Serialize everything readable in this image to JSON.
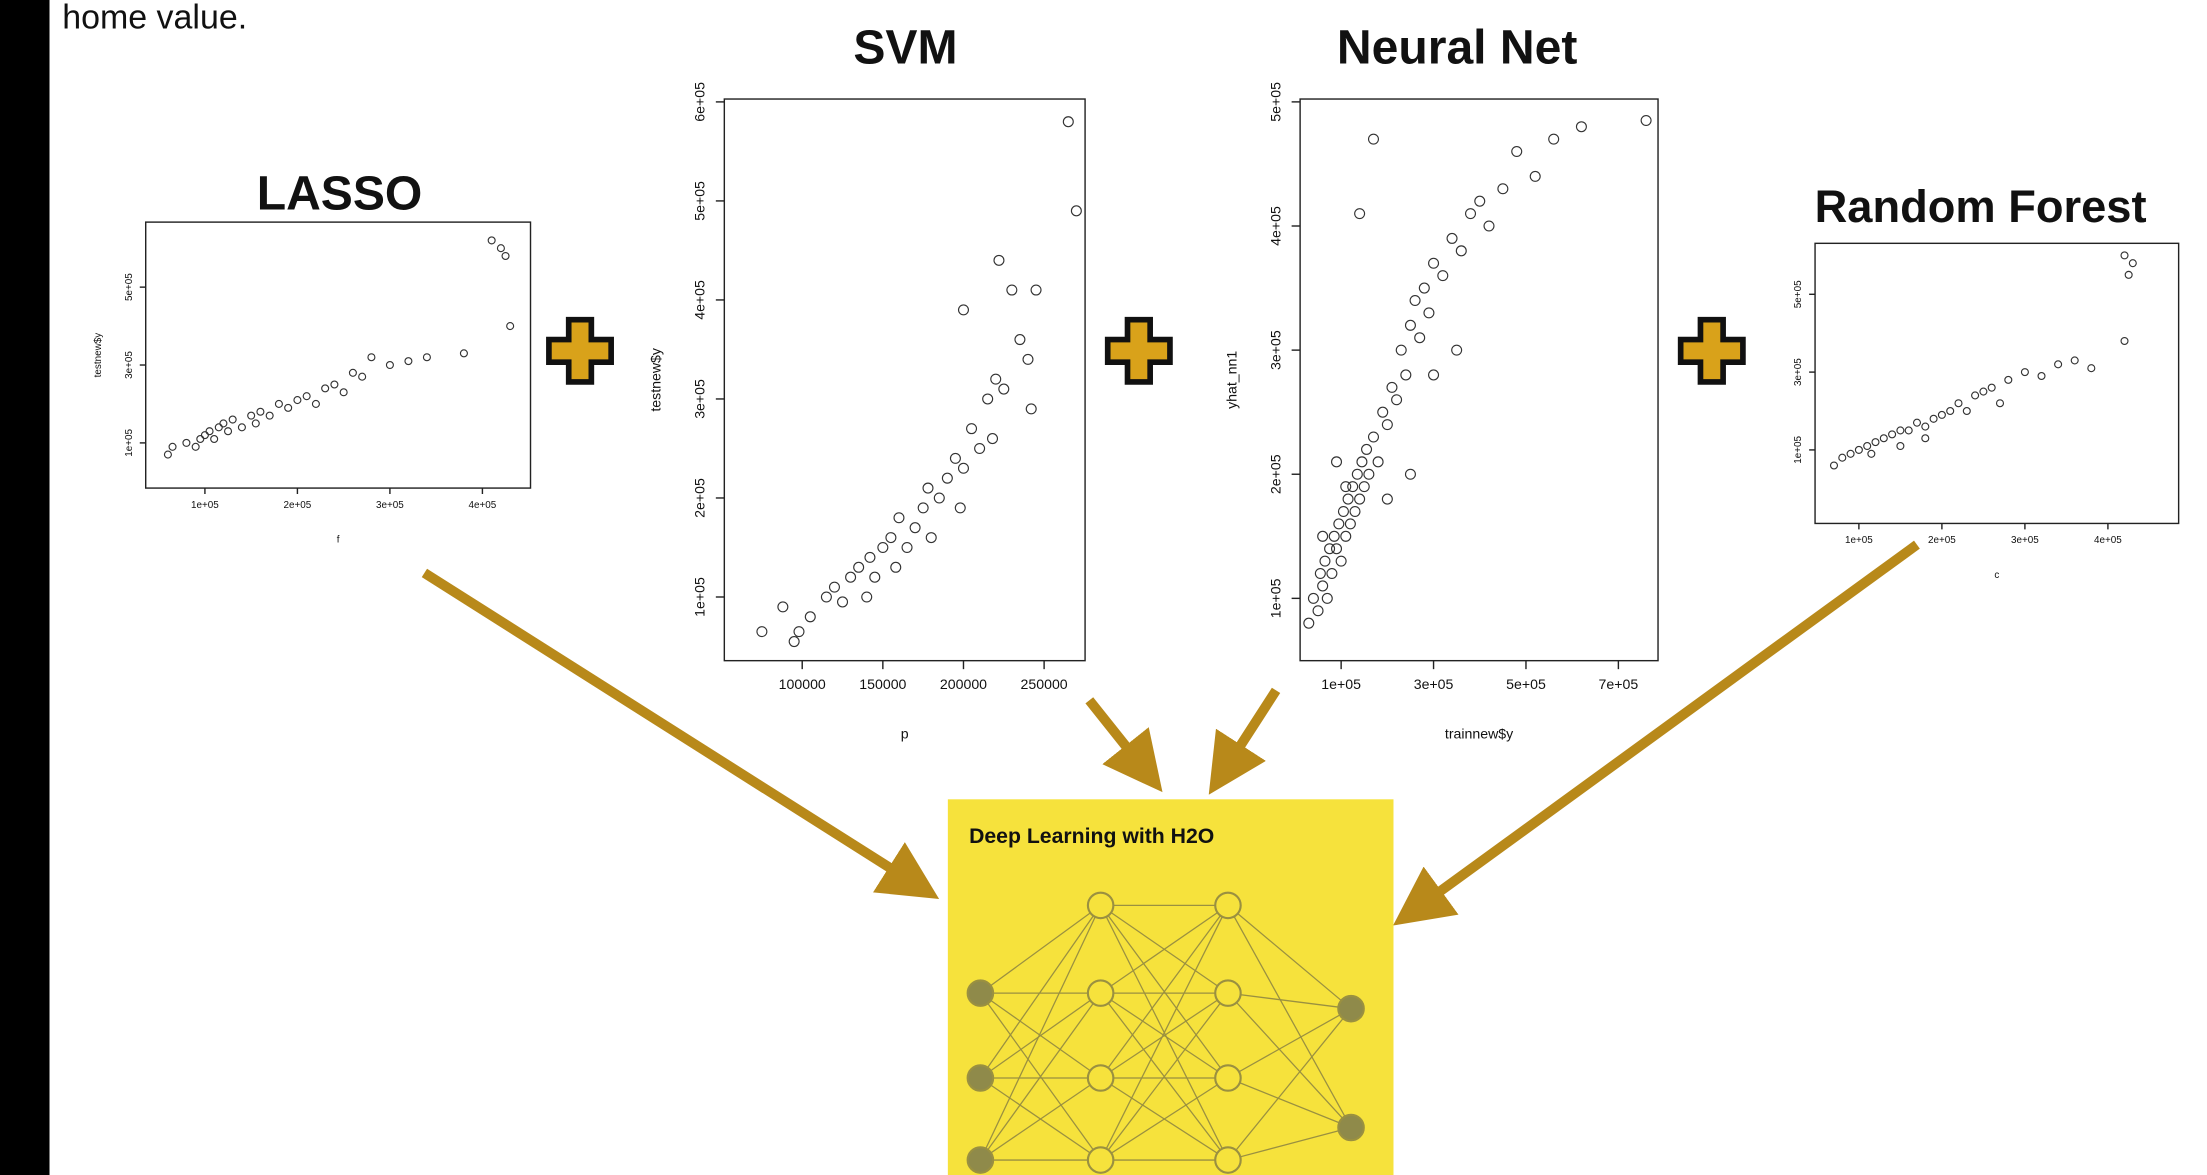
{
  "caption": "home value.",
  "diagram": {
    "title": "Deep Learning with H2O"
  },
  "chart_data": [
    {
      "type": "scatter",
      "title": "LASSO",
      "x_label": "f",
      "y_label": "testnew$y",
      "xlim": [
        36000,
        452000
      ],
      "ylim": [
        -16000,
        667000
      ],
      "xticks": [
        {
          "value": 100000,
          "label": "1e+05"
        },
        {
          "value": 200000,
          "label": "2e+05"
        },
        {
          "value": 300000,
          "label": "3e+05"
        },
        {
          "value": 400000,
          "label": "4e+05"
        }
      ],
      "yticks": [
        {
          "value": 100000,
          "label": "1e+05"
        },
        {
          "value": 300000,
          "label": "3e+05"
        },
        {
          "value": 500000,
          "label": "5e+05"
        }
      ],
      "x": [
        60000,
        65000,
        80000,
        90000,
        95000,
        100000,
        105000,
        110000,
        115000,
        120000,
        125000,
        130000,
        140000,
        150000,
        155000,
        160000,
        170000,
        180000,
        190000,
        200000,
        210000,
        220000,
        230000,
        240000,
        250000,
        260000,
        270000,
        280000,
        300000,
        320000,
        340000,
        380000,
        410000,
        420000,
        425000,
        430000
      ],
      "y": [
        70000,
        90000,
        100000,
        90000,
        110000,
        120000,
        130000,
        110000,
        140000,
        150000,
        130000,
        160000,
        140000,
        170000,
        150000,
        180000,
        170000,
        200000,
        190000,
        210000,
        220000,
        200000,
        240000,
        250000,
        230000,
        280000,
        270000,
        320000,
        300000,
        310000,
        320000,
        330000,
        620000,
        600000,
        580000,
        400000
      ]
    },
    {
      "type": "scatter",
      "title": "SVM",
      "x_label": "p",
      "y_label": "testnew$y",
      "xlim": [
        51700,
        275400
      ],
      "ylim": [
        35700,
        602900
      ],
      "xticks": [
        100000,
        150000,
        200000,
        250000
      ],
      "yticks": [
        {
          "value": 100000,
          "label": "1e+05"
        },
        {
          "value": 200000,
          "label": "2e+05"
        },
        {
          "value": 300000,
          "label": "3e+05"
        },
        {
          "value": 400000,
          "label": "4e+05"
        },
        {
          "value": 500000,
          "label": "5e+05"
        },
        {
          "value": 600000,
          "label": "6e+05"
        }
      ],
      "x": [
        75000,
        88000,
        95000,
        98000,
        105000,
        115000,
        120000,
        125000,
        130000,
        135000,
        140000,
        142000,
        145000,
        150000,
        155000,
        158000,
        160000,
        165000,
        170000,
        175000,
        178000,
        180000,
        185000,
        190000,
        195000,
        198000,
        200000,
        200000,
        205000,
        210000,
        215000,
        218000,
        220000,
        222000,
        225000,
        230000,
        235000,
        240000,
        242000,
        245000,
        265000,
        270000
      ],
      "y": [
        65000,
        90000,
        55000,
        65000,
        80000,
        100000,
        110000,
        95000,
        120000,
        130000,
        100000,
        140000,
        120000,
        150000,
        160000,
        130000,
        180000,
        150000,
        170000,
        190000,
        210000,
        160000,
        200000,
        220000,
        240000,
        190000,
        230000,
        390000,
        270000,
        250000,
        300000,
        260000,
        320000,
        440000,
        310000,
        410000,
        360000,
        340000,
        290000,
        410000,
        580000,
        490000
      ]
    },
    {
      "type": "scatter",
      "title": "Neural Net",
      "x_label": "trainnew$y",
      "y_label": "yhat_nn1",
      "xlim": [
        11200,
        785800
      ],
      "ylim": [
        49800,
        502300
      ],
      "xticks": [
        {
          "value": 100000,
          "label": "1e+05"
        },
        {
          "value": 300000,
          "label": "3e+05"
        },
        {
          "value": 500000,
          "label": "5e+05"
        },
        {
          "value": 700000,
          "label": "7e+05"
        }
      ],
      "yticks": [
        {
          "value": 100000,
          "label": "1e+05"
        },
        {
          "value": 200000,
          "label": "2e+05"
        },
        {
          "value": 300000,
          "label": "3e+05"
        },
        {
          "value": 400000,
          "label": "4e+05"
        },
        {
          "value": 500000,
          "label": "5e+05"
        }
      ],
      "x": [
        30000,
        40000,
        50000,
        55000,
        60000,
        65000,
        70000,
        75000,
        80000,
        85000,
        90000,
        95000,
        100000,
        105000,
        110000,
        115000,
        120000,
        125000,
        130000,
        135000,
        140000,
        145000,
        150000,
        155000,
        160000,
        170000,
        180000,
        190000,
        200000,
        210000,
        220000,
        230000,
        240000,
        250000,
        260000,
        270000,
        280000,
        290000,
        300000,
        320000,
        340000,
        360000,
        380000,
        400000,
        420000,
        450000,
        480000,
        520000,
        560000,
        620000,
        760000,
        170000,
        140000,
        110000,
        90000,
        60000,
        200000,
        250000,
        300000,
        350000
      ],
      "y": [
        80000,
        100000,
        90000,
        120000,
        110000,
        130000,
        100000,
        140000,
        120000,
        150000,
        140000,
        160000,
        130000,
        170000,
        150000,
        180000,
        160000,
        190000,
        170000,
        200000,
        180000,
        210000,
        190000,
        220000,
        200000,
        230000,
        210000,
        250000,
        240000,
        270000,
        260000,
        300000,
        280000,
        320000,
        340000,
        310000,
        350000,
        330000,
        370000,
        360000,
        390000,
        380000,
        410000,
        420000,
        400000,
        430000,
        460000,
        440000,
        470000,
        480000,
        485000,
        470000,
        410000,
        190000,
        210000,
        150000,
        180000,
        200000,
        280000,
        300000
      ]
    },
    {
      "type": "scatter",
      "title": "Random Forest",
      "x_label": "c",
      "xlim": [
        47200,
        485200
      ],
      "ylim": [
        -89000,
        631000
      ],
      "xticks": [
        {
          "value": 100000,
          "label": "1e+05"
        },
        {
          "value": 200000,
          "label": "2e+05"
        },
        {
          "value": 300000,
          "label": "3e+05"
        },
        {
          "value": 400000,
          "label": "4e+05"
        }
      ],
      "yticks": [
        {
          "value": 100000,
          "label": "1e+05"
        },
        {
          "value": 300000,
          "label": "3e+05"
        },
        {
          "value": 500000,
          "label": "5e+05"
        }
      ],
      "x": [
        70000,
        80000,
        90000,
        100000,
        110000,
        115000,
        120000,
        130000,
        140000,
        150000,
        160000,
        170000,
        180000,
        190000,
        200000,
        210000,
        220000,
        230000,
        240000,
        250000,
        260000,
        280000,
        300000,
        320000,
        340000,
        360000,
        380000,
        420000,
        425000,
        430000,
        420000,
        150000,
        180000,
        270000
      ],
      "y": [
        60000,
        80000,
        90000,
        100000,
        110000,
        90000,
        120000,
        130000,
        140000,
        150000,
        150000,
        170000,
        160000,
        180000,
        190000,
        200000,
        220000,
        200000,
        240000,
        250000,
        260000,
        280000,
        300000,
        290000,
        320000,
        330000,
        310000,
        600000,
        550000,
        580000,
        380000,
        110000,
        130000,
        220000
      ]
    }
  ]
}
